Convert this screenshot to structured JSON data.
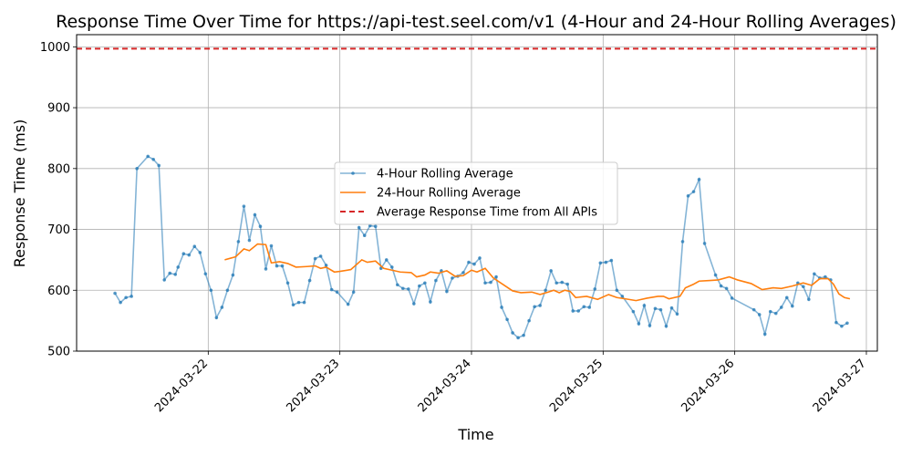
{
  "chart_data": {
    "type": "line",
    "title": "Response Time Over Time for https://api-test.seel.com/v1 (4-Hour and 24-Hour Rolling Averages)",
    "xlabel": "Time",
    "ylabel": "Response Time (ms)",
    "x_range": [
      "2024-03-21 00:00",
      "2024-03-27 02:00"
    ],
    "ylim": [
      500,
      1020
    ],
    "x_ticks": [
      "2024-03-22",
      "2024-03-23",
      "2024-03-24",
      "2024-03-25",
      "2024-03-26",
      "2024-03-27"
    ],
    "y_ticks": [
      500,
      600,
      700,
      800,
      900,
      1000
    ],
    "grid": true,
    "legend_position": "center",
    "series": [
      {
        "name": "4-Hour Rolling Average",
        "color": "#1f77b4",
        "points": [
          [
            "2024-03-21 07:00",
            595
          ],
          [
            "2024-03-21 08:00",
            580
          ],
          [
            "2024-03-21 09:00",
            588
          ],
          [
            "2024-03-21 10:00",
            590
          ],
          [
            "2024-03-21 11:00",
            800
          ],
          [
            "2024-03-21 13:00",
            820
          ],
          [
            "2024-03-21 14:00",
            815
          ],
          [
            "2024-03-21 15:00",
            805
          ],
          [
            "2024-03-21 16:00",
            617
          ],
          [
            "2024-03-21 17:00",
            628
          ],
          [
            "2024-03-21 18:00",
            626
          ],
          [
            "2024-03-21 18:30",
            638
          ],
          [
            "2024-03-21 19:30",
            660
          ],
          [
            "2024-03-21 20:30",
            658
          ],
          [
            "2024-03-21 21:30",
            672
          ],
          [
            "2024-03-21 22:30",
            662
          ],
          [
            "2024-03-21 23:30",
            627
          ],
          [
            "2024-03-22 00:30",
            600
          ],
          [
            "2024-03-22 01:30",
            555
          ],
          [
            "2024-03-22 02:30",
            572
          ],
          [
            "2024-03-22 03:30",
            600
          ],
          [
            "2024-03-22 04:30",
            625
          ],
          [
            "2024-03-22 05:30",
            680
          ],
          [
            "2024-03-22 06:30",
            738
          ],
          [
            "2024-03-22 07:30",
            682
          ],
          [
            "2024-03-22 08:30",
            724
          ],
          [
            "2024-03-22 09:30",
            705
          ],
          [
            "2024-03-22 10:30",
            635
          ],
          [
            "2024-03-22 11:30",
            673
          ],
          [
            "2024-03-22 12:30",
            640
          ],
          [
            "2024-03-22 13:30",
            640
          ],
          [
            "2024-03-22 14:30",
            612
          ],
          [
            "2024-03-22 15:30",
            576
          ],
          [
            "2024-03-22 16:30",
            580
          ],
          [
            "2024-03-22 17:30",
            580
          ],
          [
            "2024-03-22 18:30",
            616
          ],
          [
            "2024-03-22 19:30",
            652
          ],
          [
            "2024-03-22 20:30",
            656
          ],
          [
            "2024-03-22 21:30",
            641
          ],
          [
            "2024-03-22 22:30",
            601
          ],
          [
            "2024-03-22 23:30",
            597
          ],
          [
            "2024-03-23 01:30",
            577
          ],
          [
            "2024-03-23 02:30",
            597
          ],
          [
            "2024-03-23 03:30",
            703
          ],
          [
            "2024-03-23 04:30",
            690
          ],
          [
            "2024-03-23 05:30",
            706
          ],
          [
            "2024-03-23 06:30",
            705
          ],
          [
            "2024-03-23 07:30",
            636
          ],
          [
            "2024-03-23 08:30",
            650
          ],
          [
            "2024-03-23 09:30",
            638
          ],
          [
            "2024-03-23 10:30",
            609
          ],
          [
            "2024-03-23 11:30",
            603
          ],
          [
            "2024-03-23 12:30",
            602
          ],
          [
            "2024-03-23 13:30",
            578
          ],
          [
            "2024-03-23 14:30",
            607
          ],
          [
            "2024-03-23 15:30",
            612
          ],
          [
            "2024-03-23 16:30",
            581
          ],
          [
            "2024-03-23 17:30",
            616
          ],
          [
            "2024-03-23 18:30",
            632
          ],
          [
            "2024-03-23 19:30",
            598
          ],
          [
            "2024-03-23 20:30",
            620
          ],
          [
            "2024-03-23 21:30",
            623
          ],
          [
            "2024-03-23 22:30",
            629
          ],
          [
            "2024-03-23 23:30",
            646
          ],
          [
            "2024-03-24 00:30",
            643
          ],
          [
            "2024-03-24 01:30",
            653
          ],
          [
            "2024-03-24 02:30",
            612
          ],
          [
            "2024-03-24 03:30",
            613
          ],
          [
            "2024-03-24 04:30",
            622
          ],
          [
            "2024-03-24 05:30",
            572
          ],
          [
            "2024-03-24 06:30",
            552
          ],
          [
            "2024-03-24 07:30",
            530
          ],
          [
            "2024-03-24 08:30",
            522
          ],
          [
            "2024-03-24 09:30",
            526
          ],
          [
            "2024-03-24 10:30",
            550
          ],
          [
            "2024-03-24 11:30",
            573
          ],
          [
            "2024-03-24 12:30",
            575
          ],
          [
            "2024-03-24 13:30",
            600
          ],
          [
            "2024-03-24 14:30",
            632
          ],
          [
            "2024-03-24 15:30",
            612
          ],
          [
            "2024-03-24 16:30",
            613
          ],
          [
            "2024-03-24 17:30",
            610
          ],
          [
            "2024-03-24 18:30",
            566
          ],
          [
            "2024-03-24 19:30",
            566
          ],
          [
            "2024-03-24 20:30",
            573
          ],
          [
            "2024-03-24 21:30",
            572
          ],
          [
            "2024-03-24 22:30",
            602
          ],
          [
            "2024-03-24 23:30",
            645
          ],
          [
            "2024-03-25 00:30",
            646
          ],
          [
            "2024-03-25 01:30",
            649
          ],
          [
            "2024-03-25 02:30",
            600
          ],
          [
            "2024-03-25 03:30",
            590
          ],
          [
            "2024-03-25 05:30",
            565
          ],
          [
            "2024-03-25 06:30",
            545
          ],
          [
            "2024-03-25 07:30",
            575
          ],
          [
            "2024-03-25 08:30",
            542
          ],
          [
            "2024-03-25 09:30",
            570
          ],
          [
            "2024-03-25 10:30",
            568
          ],
          [
            "2024-03-25 11:30",
            541
          ],
          [
            "2024-03-25 12:30",
            571
          ],
          [
            "2024-03-25 13:30",
            561
          ],
          [
            "2024-03-25 14:30",
            680
          ],
          [
            "2024-03-25 15:30",
            755
          ],
          [
            "2024-03-25 16:30",
            762
          ],
          [
            "2024-03-25 17:30",
            782
          ],
          [
            "2024-03-25 18:30",
            677
          ],
          [
            "2024-03-25 20:30",
            625
          ],
          [
            "2024-03-25 21:30",
            607
          ],
          [
            "2024-03-25 22:30",
            603
          ],
          [
            "2024-03-25 23:30",
            587
          ],
          [
            "2024-03-26 03:30",
            568
          ],
          [
            "2024-03-26 04:30",
            560
          ],
          [
            "2024-03-26 05:30",
            528
          ],
          [
            "2024-03-26 06:30",
            565
          ],
          [
            "2024-03-26 07:30",
            562
          ],
          [
            "2024-03-26 08:30",
            572
          ],
          [
            "2024-03-26 09:30",
            588
          ],
          [
            "2024-03-26 10:30",
            574
          ],
          [
            "2024-03-26 11:30",
            612
          ],
          [
            "2024-03-26 12:30",
            606
          ],
          [
            "2024-03-26 13:30",
            585
          ],
          [
            "2024-03-26 14:30",
            627
          ],
          [
            "2024-03-26 15:30",
            620
          ],
          [
            "2024-03-26 16:30",
            622
          ],
          [
            "2024-03-26 17:30",
            617
          ],
          [
            "2024-03-26 18:30",
            547
          ],
          [
            "2024-03-26 19:30",
            541
          ],
          [
            "2024-03-26 20:30",
            546
          ]
        ]
      },
      {
        "name": "24-Hour Rolling Average",
        "color": "#ff7f0e",
        "points": [
          [
            "2024-03-22 03:00",
            650
          ],
          [
            "2024-03-22 05:00",
            655
          ],
          [
            "2024-03-22 06:30",
            668
          ],
          [
            "2024-03-22 07:30",
            665
          ],
          [
            "2024-03-22 09:00",
            676
          ],
          [
            "2024-03-22 10:30",
            675
          ],
          [
            "2024-03-22 11:30",
            645
          ],
          [
            "2024-03-22 13:00",
            647
          ],
          [
            "2024-03-22 14:30",
            644
          ],
          [
            "2024-03-22 16:00",
            638
          ],
          [
            "2024-03-22 18:00",
            639
          ],
          [
            "2024-03-22 19:30",
            640
          ],
          [
            "2024-03-22 20:30",
            636
          ],
          [
            "2024-03-22 21:30",
            638
          ],
          [
            "2024-03-22 23:00",
            630
          ],
          [
            "2024-03-23 00:00",
            631
          ],
          [
            "2024-03-23 02:00",
            634
          ],
          [
            "2024-03-23 04:00",
            650
          ],
          [
            "2024-03-23 05:00",
            646
          ],
          [
            "2024-03-23 06:30",
            648
          ],
          [
            "2024-03-23 08:00",
            636
          ],
          [
            "2024-03-23 09:30",
            633
          ],
          [
            "2024-03-23 11:00",
            630
          ],
          [
            "2024-03-23 13:00",
            629
          ],
          [
            "2024-03-23 14:00",
            622
          ],
          [
            "2024-03-23 15:30",
            625
          ],
          [
            "2024-03-23 16:30",
            630
          ],
          [
            "2024-03-23 18:00",
            628
          ],
          [
            "2024-03-23 19:30",
            632
          ],
          [
            "2024-03-23 21:00",
            623
          ],
          [
            "2024-03-23 22:30",
            624
          ],
          [
            "2024-03-24 00:00",
            633
          ],
          [
            "2024-03-24 01:00",
            630
          ],
          [
            "2024-03-24 02:30",
            636
          ],
          [
            "2024-03-24 04:00",
            620
          ],
          [
            "2024-03-24 06:00",
            608
          ],
          [
            "2024-03-24 07:30",
            599
          ],
          [
            "2024-03-24 09:00",
            596
          ],
          [
            "2024-03-24 11:00",
            597
          ],
          [
            "2024-03-24 12:30",
            593
          ],
          [
            "2024-03-24 14:00",
            597
          ],
          [
            "2024-03-24 15:00",
            600
          ],
          [
            "2024-03-24 16:00",
            596
          ],
          [
            "2024-03-24 17:00",
            600
          ],
          [
            "2024-03-24 18:00",
            598
          ],
          [
            "2024-03-24 19:00",
            588
          ],
          [
            "2024-03-24 21:00",
            590
          ],
          [
            "2024-03-24 23:00",
            585
          ],
          [
            "2024-03-25 01:00",
            593
          ],
          [
            "2024-03-25 02:30",
            588
          ],
          [
            "2024-03-25 04:00",
            586
          ],
          [
            "2024-03-25 06:00",
            583
          ],
          [
            "2024-03-25 08:00",
            587
          ],
          [
            "2024-03-25 10:00",
            590
          ],
          [
            "2024-03-25 11:00",
            590
          ],
          [
            "2024-03-25 12:00",
            586
          ],
          [
            "2024-03-25 14:00",
            590
          ],
          [
            "2024-03-25 15:00",
            604
          ],
          [
            "2024-03-25 16:30",
            610
          ],
          [
            "2024-03-25 17:30",
            615
          ],
          [
            "2024-03-25 19:30",
            616
          ],
          [
            "2024-03-25 21:00",
            617
          ],
          [
            "2024-03-25 23:00",
            622
          ],
          [
            "2024-03-26 00:30",
            617
          ],
          [
            "2024-03-26 03:00",
            611
          ],
          [
            "2024-03-26 05:00",
            601
          ],
          [
            "2024-03-26 07:00",
            604
          ],
          [
            "2024-03-26 08:30",
            603
          ],
          [
            "2024-03-26 10:30",
            607
          ],
          [
            "2024-03-26 12:30",
            612
          ],
          [
            "2024-03-26 14:00",
            608
          ],
          [
            "2024-03-26 15:30",
            619
          ],
          [
            "2024-03-26 17:00",
            619
          ],
          [
            "2024-03-26 18:00",
            610
          ],
          [
            "2024-03-26 19:00",
            594
          ],
          [
            "2024-03-26 20:00",
            588
          ],
          [
            "2024-03-26 21:00",
            586
          ]
        ]
      },
      {
        "name": "Average Response Time from All APIs",
        "color": "#d62728",
        "constant": 997
      }
    ]
  }
}
